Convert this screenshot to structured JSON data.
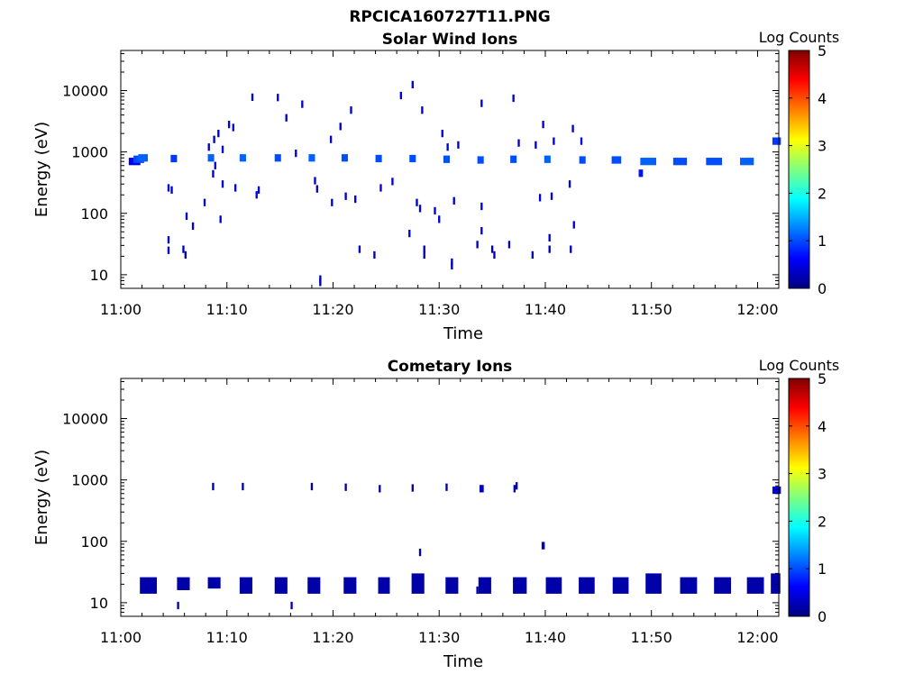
{
  "figure_title": "RPCICA160727T11.PNG",
  "chart_data": [
    {
      "type": "heatmap",
      "title": "Solar Wind Ions",
      "xlabel": "Time",
      "ylabel": "Energy (eV)",
      "y_scale": "log",
      "xlim_minutes": [
        0,
        62
      ],
      "ylim": [
        6,
        45000
      ],
      "x_ticks": [
        {
          "value": 0,
          "label": "11:00"
        },
        {
          "value": 10,
          "label": "11:10"
        },
        {
          "value": 20,
          "label": "11:20"
        },
        {
          "value": 30,
          "label": "11:30"
        },
        {
          "value": 40,
          "label": "11:40"
        },
        {
          "value": 50,
          "label": "11:50"
        },
        {
          "value": 60,
          "label": "12:00"
        }
      ],
      "y_ticks": [
        {
          "value": 10,
          "label": "10"
        },
        {
          "value": 100,
          "label": "100"
        },
        {
          "value": 1000,
          "label": "1000"
        },
        {
          "value": 10000,
          "label": "10000"
        }
      ],
      "colorbar": {
        "label": "Log Counts",
        "range": [
          0,
          5
        ],
        "ticks": [
          "0",
          "1",
          "2",
          "3",
          "4",
          "5"
        ],
        "colormap": "jet",
        "colors": [
          "#00007f",
          "#0000ff",
          "#007fff",
          "#00ffff",
          "#7fff7f",
          "#ffff00",
          "#ff7f00",
          "#ff0000",
          "#7f0000"
        ]
      },
      "cells": [
        [
          1.3,
          1.1,
          700,
          0.6
        ],
        [
          1.7,
          1.0,
          760,
          1.0
        ],
        [
          2.1,
          0.9,
          800,
          1.1
        ],
        [
          5.0,
          0.6,
          780,
          0.9
        ],
        [
          8.5,
          0.6,
          800,
          1.1
        ],
        [
          11.5,
          0.6,
          800,
          1.1
        ],
        [
          14.8,
          0.6,
          800,
          1.0
        ],
        [
          18.0,
          0.6,
          800,
          1.1
        ],
        [
          21.1,
          0.6,
          800,
          1.0
        ],
        [
          24.3,
          0.6,
          780,
          1.0
        ],
        [
          27.5,
          0.6,
          780,
          1.0
        ],
        [
          30.7,
          0.6,
          760,
          1.0
        ],
        [
          33.9,
          0.6,
          740,
          1.0
        ],
        [
          37.0,
          0.6,
          760,
          1.0
        ],
        [
          40.2,
          0.6,
          760,
          1.1
        ],
        [
          43.5,
          0.6,
          740,
          1.0
        ],
        [
          46.7,
          0.9,
          740,
          1.0
        ],
        [
          49.7,
          1.5,
          700,
          1.1
        ],
        [
          52.7,
          1.3,
          700,
          1.0
        ],
        [
          55.9,
          1.5,
          700,
          1.0
        ],
        [
          59.0,
          1.3,
          700,
          1.1
        ],
        [
          61.8,
          0.8,
          1500,
          0.9
        ],
        [
          49.0,
          0.4,
          450,
          0.7
        ],
        [
          4.5,
          0.2,
          260,
          0.4
        ],
        [
          4.8,
          0.2,
          240,
          0.4
        ],
        [
          6.2,
          0.2,
          90,
          0.4
        ],
        [
          6.8,
          0.2,
          62,
          0.4
        ],
        [
          7.9,
          0.2,
          150,
          0.4
        ],
        [
          8.3,
          0.2,
          1200,
          0.4
        ],
        [
          8.8,
          0.2,
          1600,
          0.4
        ],
        [
          9.2,
          0.2,
          2000,
          0.4
        ],
        [
          9.6,
          0.2,
          1100,
          0.4
        ],
        [
          10.2,
          0.2,
          2800,
          0.4
        ],
        [
          10.6,
          0.2,
          2500,
          0.4
        ],
        [
          9.6,
          0.2,
          300,
          0.4
        ],
        [
          10.8,
          0.2,
          260,
          0.4
        ],
        [
          12.4,
          0.2,
          7800,
          0.4
        ],
        [
          12.8,
          0.2,
          200,
          0.4
        ],
        [
          13.0,
          0.2,
          240,
          0.4
        ],
        [
          14.8,
          0.2,
          7700,
          0.4
        ],
        [
          15.6,
          0.2,
          3600,
          0.4
        ],
        [
          16.5,
          0.2,
          950,
          0.4
        ],
        [
          17.1,
          0.2,
          6000,
          0.4
        ],
        [
          18.3,
          0.2,
          340,
          0.4
        ],
        [
          18.5,
          0.2,
          250,
          0.4
        ],
        [
          19.8,
          0.2,
          1600,
          0.4
        ],
        [
          19.9,
          0.2,
          150,
          0.4
        ],
        [
          20.7,
          0.2,
          2600,
          0.4
        ],
        [
          21.2,
          0.2,
          190,
          0.4
        ],
        [
          21.7,
          0.2,
          4800,
          0.4
        ],
        [
          22.1,
          0.2,
          170,
          0.4
        ],
        [
          24.5,
          0.2,
          260,
          0.4
        ],
        [
          25.6,
          0.2,
          330,
          0.4
        ],
        [
          26.4,
          0.2,
          8300,
          0.4
        ],
        [
          27.5,
          0.2,
          12500,
          0.4
        ],
        [
          27.9,
          0.2,
          150,
          0.4
        ],
        [
          28.2,
          0.2,
          120,
          0.4
        ],
        [
          28.4,
          0.2,
          4800,
          0.4
        ],
        [
          29.6,
          0.2,
          110,
          0.4
        ],
        [
          30.0,
          0.2,
          80,
          0.4
        ],
        [
          30.3,
          0.2,
          2000,
          0.4
        ],
        [
          30.8,
          0.2,
          1200,
          0.4
        ],
        [
          31.4,
          0.2,
          160,
          0.4
        ],
        [
          31.8,
          0.2,
          1300,
          0.4
        ],
        [
          34.0,
          0.2,
          6200,
          0.4
        ],
        [
          34.0,
          0.2,
          130,
          0.4
        ],
        [
          34.0,
          0.2,
          52,
          0.4
        ],
        [
          37.0,
          0.2,
          7500,
          0.4
        ],
        [
          37.5,
          0.2,
          1400,
          0.4
        ],
        [
          39.1,
          0.2,
          1300,
          0.4
        ],
        [
          39.8,
          0.2,
          2800,
          0.4
        ],
        [
          39.5,
          0.2,
          180,
          0.4
        ],
        [
          40.6,
          0.2,
          190,
          0.4
        ],
        [
          40.8,
          0.2,
          1500,
          0.4
        ],
        [
          42.3,
          0.2,
          300,
          0.4
        ],
        [
          42.6,
          0.2,
          2400,
          0.4
        ],
        [
          42.7,
          0.2,
          65,
          0.4
        ],
        [
          8.7,
          0.2,
          440,
          0.4
        ],
        [
          8.9,
          0.2,
          600,
          0.4
        ],
        [
          9.4,
          0.2,
          80,
          0.4
        ],
        [
          43.4,
          0.2,
          1500,
          0.5
        ],
        [
          27.2,
          0.2,
          47,
          0.4
        ],
        [
          40.4,
          0.2,
          40,
          0.4
        ],
        [
          4.5,
          0.2,
          25,
          0.3
        ],
        [
          4.5,
          0.2,
          37,
          0.3
        ],
        [
          5.9,
          0.2,
          26,
          0.3
        ],
        [
          6.1,
          0.2,
          21,
          0.3
        ],
        [
          18.8,
          0.2,
          7.5,
          0.3
        ],
        [
          18.8,
          0.2,
          8.5,
          0.3
        ],
        [
          22.5,
          0.2,
          26,
          0.3
        ],
        [
          23.9,
          0.2,
          21,
          0.3
        ],
        [
          28.6,
          0.2,
          26,
          0.3
        ],
        [
          28.6,
          0.2,
          21,
          0.3
        ],
        [
          31.2,
          0.2,
          14,
          0.3
        ],
        [
          31.2,
          0.2,
          16,
          0.3
        ],
        [
          33.6,
          0.2,
          31,
          0.3
        ],
        [
          35.0,
          0.2,
          26,
          0.3
        ],
        [
          35.2,
          0.2,
          21,
          0.3
        ],
        [
          36.6,
          0.2,
          31,
          0.3
        ],
        [
          38.8,
          0.2,
          21,
          0.3
        ],
        [
          40.4,
          0.2,
          26,
          0.3
        ],
        [
          42.4,
          0.2,
          26,
          0.3
        ]
      ]
    },
    {
      "type": "heatmap",
      "title": "Cometary Ions",
      "xlabel": "Time",
      "ylabel": "Energy (eV)",
      "y_scale": "log",
      "xlim_minutes": [
        0,
        62
      ],
      "ylim": [
        6,
        45000
      ],
      "x_ticks": [
        {
          "value": 0,
          "label": "11:00"
        },
        {
          "value": 10,
          "label": "11:10"
        },
        {
          "value": 20,
          "label": "11:20"
        },
        {
          "value": 30,
          "label": "11:30"
        },
        {
          "value": 40,
          "label": "11:40"
        },
        {
          "value": 50,
          "label": "11:50"
        },
        {
          "value": 60,
          "label": "12:00"
        }
      ],
      "y_ticks": [
        {
          "value": 10,
          "label": "10"
        },
        {
          "value": 100,
          "label": "100"
        },
        {
          "value": 1000,
          "label": "1000"
        },
        {
          "value": 10000,
          "label": "10000"
        }
      ],
      "colorbar": {
        "label": "Log Counts",
        "range": [
          0,
          5
        ],
        "ticks": [
          "0",
          "1",
          "2",
          "3",
          "4",
          "5"
        ],
        "colormap": "jet",
        "colors": [
          "#00007f",
          "#0000ff",
          "#007fff",
          "#00ffff",
          "#7fff7f",
          "#ffff00",
          "#ff7f00",
          "#ff0000",
          "#7f0000"
        ]
      },
      "band_cells": [
        [
          2.6,
          1.6,
          14,
          26,
          0.2
        ],
        [
          5.9,
          1.2,
          16,
          26,
          0.2
        ],
        [
          8.8,
          1.2,
          17,
          26,
          0.2
        ],
        [
          11.8,
          1.2,
          14,
          26,
          0.2
        ],
        [
          15.1,
          1.2,
          14,
          26,
          0.2
        ],
        [
          18.2,
          1.2,
          14,
          26,
          0.2
        ],
        [
          21.6,
          1.2,
          14,
          26,
          0.2
        ],
        [
          24.8,
          1.1,
          14,
          26,
          0.2
        ],
        [
          28.0,
          1.2,
          14,
          30,
          0.2
        ],
        [
          31.2,
          1.2,
          14,
          26,
          0.2
        ],
        [
          34.3,
          1.2,
          14,
          26,
          0.2
        ],
        [
          37.6,
          1.3,
          14,
          26,
          0.2
        ],
        [
          40.8,
          1.5,
          14,
          26,
          0.2
        ],
        [
          43.9,
          1.5,
          14,
          26,
          0.2
        ],
        [
          47.1,
          1.5,
          14,
          26,
          0.2
        ],
        [
          50.2,
          1.5,
          14,
          30,
          0.2
        ],
        [
          53.5,
          1.6,
          14,
          26,
          0.2
        ],
        [
          56.7,
          1.6,
          14,
          26,
          0.2
        ],
        [
          59.8,
          1.6,
          14,
          26,
          0.2
        ],
        [
          61.7,
          0.9,
          14,
          30,
          0.2
        ]
      ],
      "cells": [
        [
          5.4,
          0.2,
          9,
          0.2
        ],
        [
          16.1,
          0.2,
          9,
          0.2
        ],
        [
          33.6,
          0.2,
          16,
          0.2
        ],
        [
          8.7,
          0.2,
          780,
          0.2
        ],
        [
          11.5,
          0.2,
          780,
          0.2
        ],
        [
          18.0,
          0.2,
          780,
          0.2
        ],
        [
          21.2,
          0.2,
          760,
          0.2
        ],
        [
          24.4,
          0.2,
          720,
          0.2
        ],
        [
          27.5,
          0.2,
          740,
          0.2
        ],
        [
          30.7,
          0.2,
          760,
          0.2
        ],
        [
          34.0,
          0.4,
          720,
          0.3
        ],
        [
          37.1,
          0.2,
          720,
          0.2
        ],
        [
          37.3,
          0.2,
          800,
          0.2
        ],
        [
          61.8,
          0.8,
          680,
          0.5
        ],
        [
          28.2,
          0.2,
          66,
          0.2
        ],
        [
          39.8,
          0.3,
          85,
          0.2
        ]
      ]
    }
  ]
}
